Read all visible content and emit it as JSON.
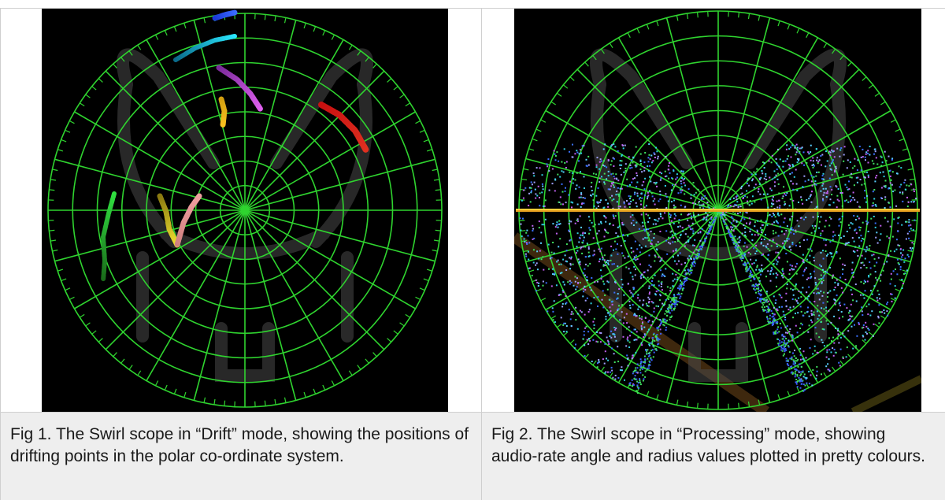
{
  "figures": [
    {
      "caption": "Fig 1. The Swirl scope in “Drift” mode, showing the positions of drifting points in the polar co-ordinate system.",
      "mode": "Drift"
    },
    {
      "caption": "Fig 2. The Swirl scope in “Processing” mode, showing audio-rate angle and radius values plotted in pretty colours.",
      "mode": "Processing"
    }
  ],
  "colors": {
    "grid": "#2fd42f",
    "background": "#000000",
    "caption_bg": "#eeeeee"
  }
}
